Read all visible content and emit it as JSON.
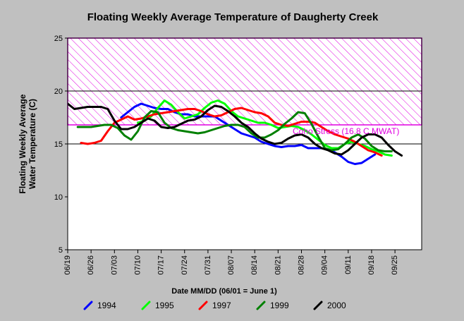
{
  "chart_data": {
    "type": "line",
    "title": "Floating Weekly Average Temperature of Daugherty Creek",
    "ylabel_line1": "Floating Weekly Average",
    "ylabel_line2": "Water Temperature (C)",
    "xlabel": "Date MM/DD (06/01 = June 1)",
    "x_tick_labels": [
      "06/19",
      "06/26",
      "07/03",
      "07/10",
      "07/17",
      "07/24",
      "07/31",
      "08/07",
      "08/14",
      "08/21",
      "08/28",
      "09/04",
      "09/11",
      "09/18",
      "09/25"
    ],
    "x_ticks_day": [
      18,
      25,
      32,
      39,
      46,
      53,
      60,
      67,
      74,
      81,
      88,
      95,
      102,
      109,
      116
    ],
    "xlim": [
      18,
      124
    ],
    "ylim": [
      5,
      25
    ],
    "y_ticks": [
      5,
      10,
      15,
      20,
      25
    ],
    "grid_y": [
      15,
      20,
      25
    ],
    "annotation": {
      "label": "Coho Stress (16.8 C MWAT)",
      "y_low": 16.8,
      "y_high": 25,
      "color": "#e000e0"
    },
    "series": [
      {
        "name": "1994",
        "color": "#0000ff",
        "x": [
          34,
          36,
          38,
          40,
          42,
          44,
          46,
          48,
          50,
          52,
          54,
          56,
          58,
          60,
          62,
          64,
          66,
          68,
          70,
          72,
          74,
          76,
          78,
          80,
          82,
          84,
          86,
          88,
          90,
          92,
          94,
          96,
          98,
          100,
          102,
          104,
          106,
          108,
          110
        ],
        "y": [
          17.5,
          18.0,
          18.5,
          18.8,
          18.6,
          18.4,
          18.3,
          18.3,
          18.0,
          17.8,
          17.8,
          17.6,
          17.6,
          17.6,
          17.6,
          17.2,
          16.8,
          16.4,
          16.0,
          15.8,
          15.6,
          15.2,
          15.0,
          14.8,
          14.7,
          14.8,
          14.8,
          14.9,
          14.6,
          14.6,
          14.6,
          14.5,
          14.2,
          13.8,
          13.3,
          13.1,
          13.2,
          13.6,
          14.0
        ]
      },
      {
        "name": "1995",
        "color": "#00ff00",
        "x": [
          39,
          41,
          43,
          45,
          47,
          49,
          51,
          53,
          55,
          57,
          59,
          61,
          63,
          65,
          67,
          69,
          71,
          73,
          75,
          77,
          79,
          81,
          83,
          85,
          87,
          89,
          91,
          93,
          95,
          97,
          99,
          101,
          103,
          105,
          107,
          109,
          111,
          113,
          115
        ],
        "y": [
          17.0,
          17.2,
          17.6,
          18.4,
          19.1,
          18.7,
          18.0,
          17.4,
          17.6,
          17.8,
          18.4,
          18.9,
          19.1,
          18.8,
          18.1,
          17.6,
          17.4,
          17.2,
          17.0,
          17.0,
          16.8,
          16.5,
          16.6,
          16.7,
          16.6,
          16.3,
          15.9,
          15.4,
          14.9,
          14.6,
          14.6,
          15.0,
          15.2,
          15.0,
          14.8,
          14.5,
          14.3,
          14.0,
          13.9
        ]
      },
      {
        "name": "1997",
        "color": "#ff0000",
        "x": [
          22,
          24,
          26,
          28,
          30,
          32,
          34,
          36,
          38,
          40,
          42,
          44,
          46,
          48,
          50,
          52,
          54,
          56,
          58,
          60,
          62,
          64,
          66,
          68,
          70,
          72,
          74,
          76,
          78,
          80,
          82,
          84,
          86,
          88,
          90,
          92,
          94,
          96,
          98,
          100,
          102,
          104,
          106,
          108,
          110,
          112
        ],
        "y": [
          15.1,
          15.0,
          15.1,
          15.3,
          16.2,
          17.0,
          17.3,
          17.6,
          17.3,
          17.4,
          17.6,
          17.8,
          17.9,
          18.0,
          18.1,
          18.2,
          18.3,
          18.3,
          18.1,
          17.8,
          17.6,
          17.7,
          18.0,
          18.3,
          18.4,
          18.2,
          18.0,
          17.9,
          17.6,
          17.0,
          16.8,
          16.7,
          16.9,
          17.1,
          17.1,
          17.0,
          16.6,
          16.2,
          15.9,
          15.7,
          15.5,
          15.2,
          14.8,
          14.4,
          14.2,
          13.9
        ]
      },
      {
        "name": "1999",
        "color": "#008000",
        "x": [
          21,
          23,
          25,
          27,
          29,
          31,
          33,
          35,
          37,
          39,
          41,
          43,
          45,
          47,
          49,
          51,
          53,
          55,
          57,
          59,
          61,
          63,
          65,
          67,
          69,
          71,
          73,
          75,
          77,
          79,
          81,
          83,
          85,
          87,
          89,
          91,
          93,
          95,
          97,
          99,
          101,
          103,
          105,
          107,
          109,
          111,
          113,
          115
        ],
        "y": [
          16.6,
          16.6,
          16.6,
          16.7,
          16.8,
          16.8,
          16.5,
          15.8,
          15.4,
          16.2,
          17.5,
          18.1,
          18.0,
          17.0,
          16.5,
          16.3,
          16.2,
          16.1,
          16.0,
          16.1,
          16.3,
          16.5,
          16.7,
          16.8,
          16.8,
          16.6,
          16.0,
          15.6,
          15.6,
          15.9,
          16.3,
          16.9,
          17.4,
          18.0,
          17.9,
          16.9,
          15.7,
          14.6,
          14.4,
          14.5,
          15.0,
          15.6,
          15.9,
          15.5,
          14.8,
          14.4,
          14.3,
          14.3
        ]
      },
      {
        "name": "2000",
        "color": "#000000",
        "x": [
          18,
          20,
          22,
          24,
          26,
          28,
          30,
          32,
          34,
          36,
          38,
          40,
          42,
          44,
          46,
          48,
          50,
          52,
          54,
          56,
          58,
          60,
          62,
          64,
          66,
          68,
          70,
          72,
          74,
          76,
          78,
          80,
          82,
          84,
          86,
          88,
          90,
          92,
          94,
          96,
          98,
          100,
          102,
          104,
          106,
          108,
          110,
          112,
          114,
          116,
          118
        ],
        "y": [
          18.8,
          18.3,
          18.4,
          18.5,
          18.5,
          18.5,
          18.3,
          17.2,
          16.4,
          16.4,
          16.6,
          17.0,
          17.4,
          17.2,
          16.6,
          16.5,
          16.6,
          16.9,
          17.2,
          17.3,
          17.6,
          18.2,
          18.6,
          18.5,
          18.1,
          17.6,
          17.0,
          16.6,
          16.0,
          15.5,
          15.2,
          15.0,
          15.1,
          15.5,
          15.8,
          15.9,
          15.6,
          15.0,
          14.6,
          14.4,
          14.1,
          14.0,
          14.4,
          15.0,
          15.6,
          15.9,
          15.9,
          15.6,
          14.9,
          14.3,
          13.9
        ]
      }
    ]
  }
}
